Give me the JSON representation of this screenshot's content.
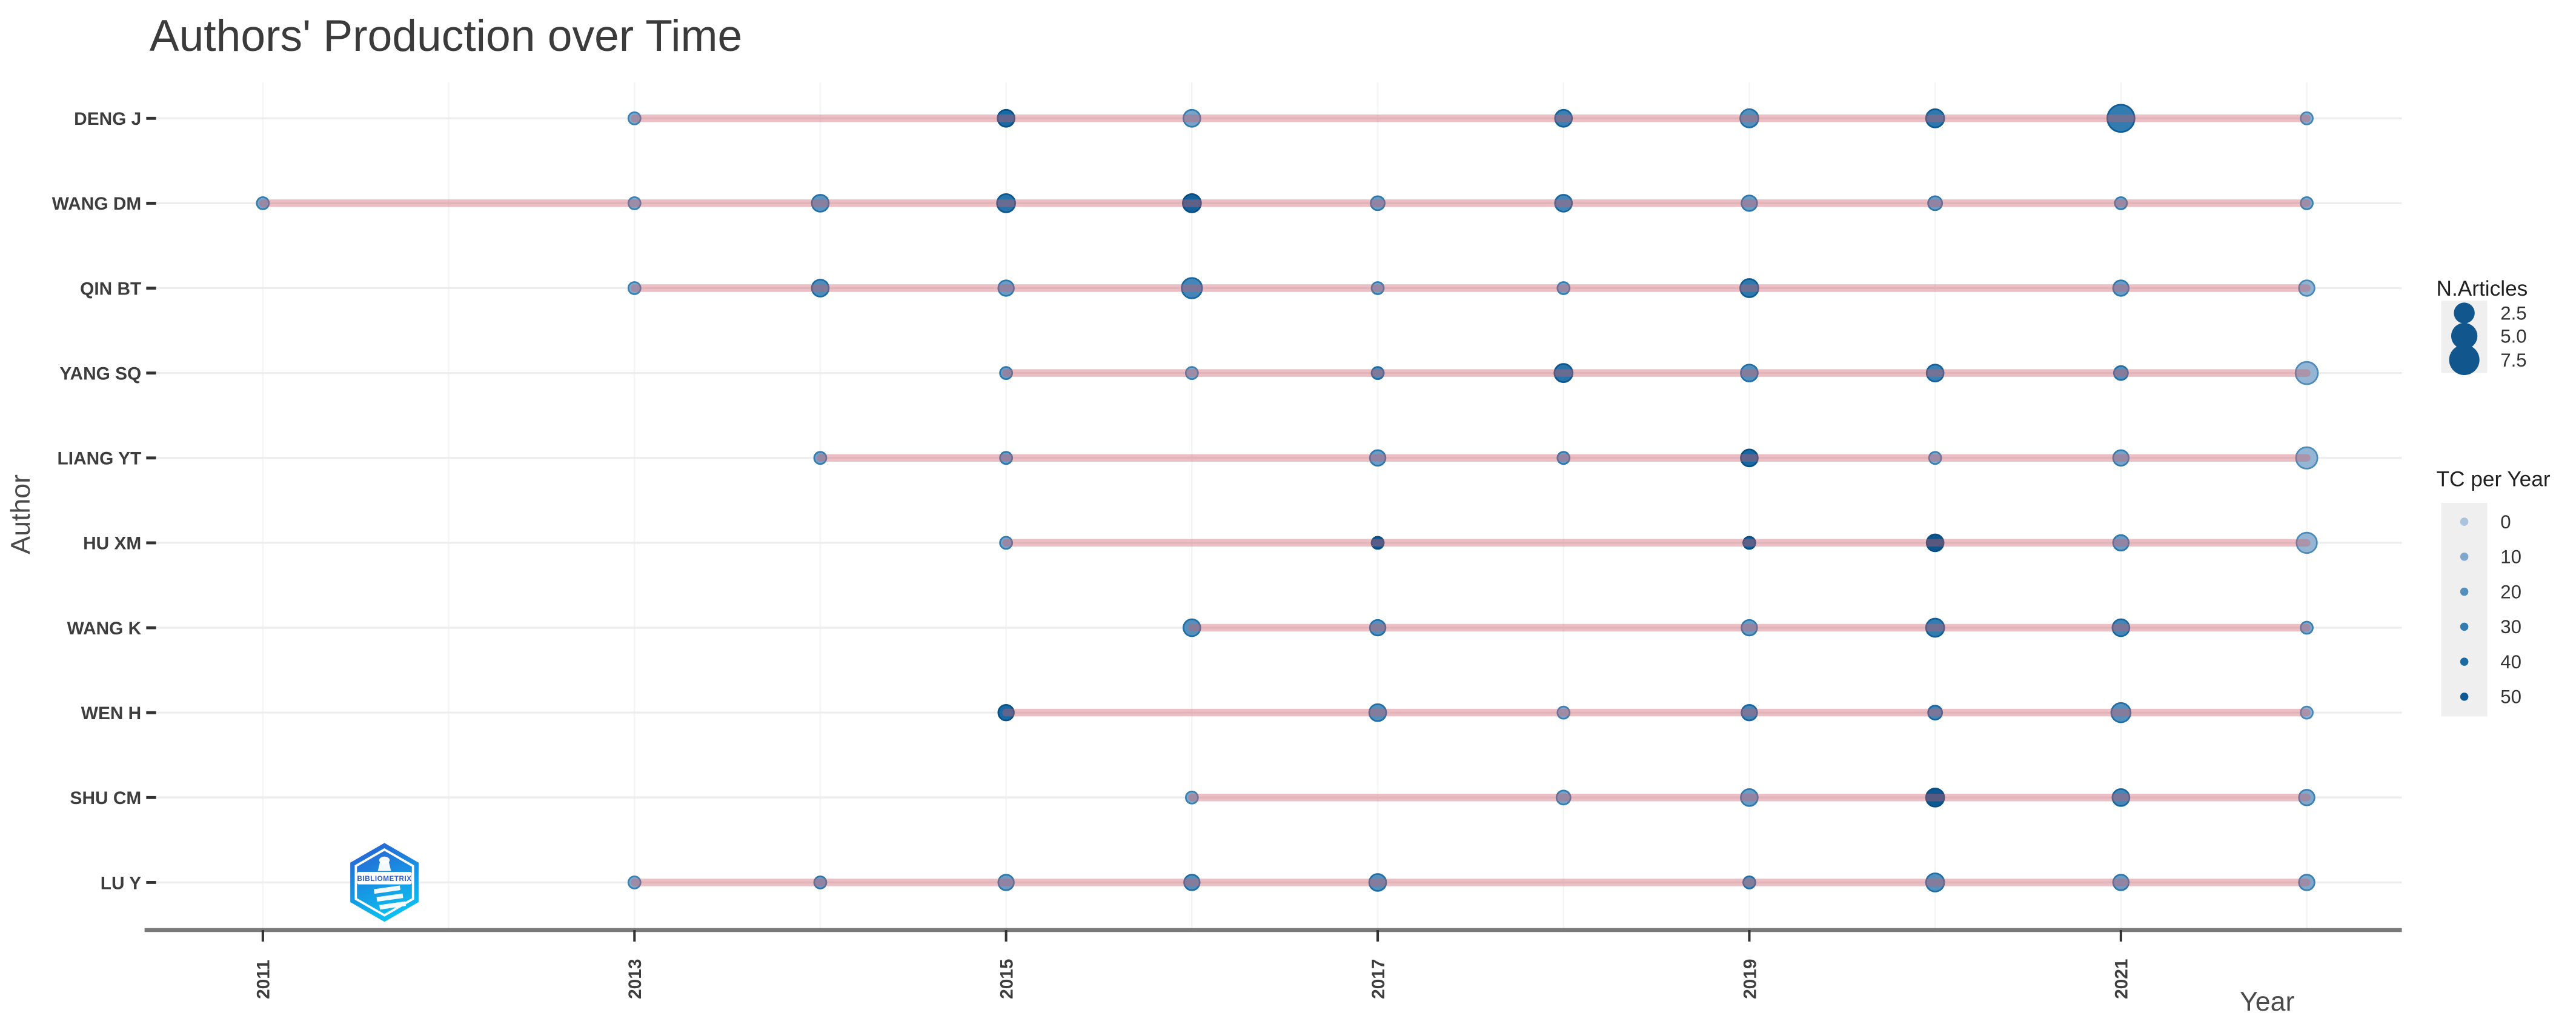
{
  "title": "Authors' Production over Time",
  "colors": {
    "title_text": "#3b3b3b",
    "axis_text": "#3d3d3d",
    "axis_title_text": "#4a4a4a",
    "axis_line": "#7a7a7a",
    "grid_line": "#ededed",
    "minor_grid_line": "#f5f5f5",
    "timespan_line": "rgba(205,95,108,0.40)",
    "legend_key_bg": "#efefef",
    "size_dot": "#11578e",
    "tc_scale_stops": [
      {
        "tc": 0,
        "hex": "#a9c4dc"
      },
      {
        "tc": 10,
        "hex": "#7fa8cc"
      },
      {
        "tc": 20,
        "hex": "#5590bd"
      },
      {
        "tc": 30,
        "hex": "#337cb0"
      },
      {
        "tc": 40,
        "hex": "#1a6aa3"
      },
      {
        "tc": 50,
        "hex": "#0d5a94"
      },
      {
        "tc": 60,
        "hex": "#084e83"
      }
    ],
    "logo_gradient_top": "#2b59d0",
    "logo_gradient_bottom": "#0bbdf0"
  },
  "legend": {
    "size_title": "N.Articles",
    "size_labels": [
      "2.5",
      "5.0",
      "7.5"
    ],
    "size_values": [
      2.5,
      5.0,
      7.5
    ],
    "color_title": "TC per Year",
    "color_labels": [
      "0",
      "10",
      "20",
      "30",
      "40",
      "50"
    ],
    "color_values": [
      0,
      10,
      20,
      30,
      40,
      50
    ]
  },
  "logo": {
    "name": "bibliometrix",
    "text": "BIBLIOMETRIX"
  },
  "chart_data": {
    "type": "scatter",
    "title": "Authors' Production over Time",
    "xlabel": "Year",
    "ylabel": "Author",
    "x_ticks": [
      2011,
      2013,
      2015,
      2017,
      2019,
      2021
    ],
    "x_range": [
      2010.4,
      2022.5
    ],
    "size_legend": "N.Articles",
    "color_legend": "TC per Year",
    "grid": true,
    "legend_position": "right",
    "authors": [
      {
        "name": "DENG J",
        "span": [
          2013,
          2022
        ],
        "points": [
          {
            "year": 2013,
            "articles": 1,
            "tc_per_year": 10
          },
          {
            "year": 2015,
            "articles": 2.5,
            "tc_per_year": 40
          },
          {
            "year": 2016,
            "articles": 2.5,
            "tc_per_year": 12
          },
          {
            "year": 2018,
            "articles": 2.5,
            "tc_per_year": 28
          },
          {
            "year": 2019,
            "articles": 3,
            "tc_per_year": 20
          },
          {
            "year": 2020,
            "articles": 3,
            "tc_per_year": 32
          },
          {
            "year": 2021,
            "articles": 8,
            "tc_per_year": 30
          },
          {
            "year": 2022,
            "articles": 1,
            "tc_per_year": 8
          }
        ]
      },
      {
        "name": "WANG DM",
        "span": [
          2011,
          2022
        ],
        "points": [
          {
            "year": 2011,
            "articles": 1,
            "tc_per_year": 12
          },
          {
            "year": 2013,
            "articles": 1,
            "tc_per_year": 10
          },
          {
            "year": 2014,
            "articles": 2.5,
            "tc_per_year": 18
          },
          {
            "year": 2015,
            "articles": 3,
            "tc_per_year": 35
          },
          {
            "year": 2016,
            "articles": 3,
            "tc_per_year": 45
          },
          {
            "year": 2017,
            "articles": 1.5,
            "tc_per_year": 15
          },
          {
            "year": 2018,
            "articles": 2.5,
            "tc_per_year": 25
          },
          {
            "year": 2019,
            "articles": 2,
            "tc_per_year": 15
          },
          {
            "year": 2020,
            "articles": 1.5,
            "tc_per_year": 15
          },
          {
            "year": 2021,
            "articles": 1,
            "tc_per_year": 12
          },
          {
            "year": 2022,
            "articles": 1,
            "tc_per_year": 10
          }
        ]
      },
      {
        "name": "QIN BT",
        "span": [
          2013,
          2022
        ],
        "points": [
          {
            "year": 2013,
            "articles": 1,
            "tc_per_year": 10
          },
          {
            "year": 2014,
            "articles": 2.5,
            "tc_per_year": 22
          },
          {
            "year": 2015,
            "articles": 2,
            "tc_per_year": 15
          },
          {
            "year": 2016,
            "articles": 4,
            "tc_per_year": 25
          },
          {
            "year": 2017,
            "articles": 1,
            "tc_per_year": 12
          },
          {
            "year": 2018,
            "articles": 1,
            "tc_per_year": 12
          },
          {
            "year": 2019,
            "articles": 3,
            "tc_per_year": 32
          },
          {
            "year": 2021,
            "articles": 2,
            "tc_per_year": 15
          },
          {
            "year": 2022,
            "articles": 2,
            "tc_per_year": 6
          }
        ]
      },
      {
        "name": "YANG SQ",
        "span": [
          2015,
          2022
        ],
        "points": [
          {
            "year": 2015,
            "articles": 1,
            "tc_per_year": 15
          },
          {
            "year": 2016,
            "articles": 1,
            "tc_per_year": 10
          },
          {
            "year": 2017,
            "articles": 1,
            "tc_per_year": 22
          },
          {
            "year": 2018,
            "articles": 3,
            "tc_per_year": 35
          },
          {
            "year": 2019,
            "articles": 2.5,
            "tc_per_year": 20
          },
          {
            "year": 2020,
            "articles": 2.5,
            "tc_per_year": 28
          },
          {
            "year": 2021,
            "articles": 1.5,
            "tc_per_year": 20
          },
          {
            "year": 2022,
            "articles": 5,
            "tc_per_year": 5
          }
        ]
      },
      {
        "name": "LIANG YT",
        "span": [
          2014,
          2022
        ],
        "points": [
          {
            "year": 2014,
            "articles": 1,
            "tc_per_year": 12
          },
          {
            "year": 2015,
            "articles": 1,
            "tc_per_year": 15
          },
          {
            "year": 2017,
            "articles": 2,
            "tc_per_year": 15
          },
          {
            "year": 2018,
            "articles": 1,
            "tc_per_year": 15
          },
          {
            "year": 2019,
            "articles": 2.5,
            "tc_per_year": 42
          },
          {
            "year": 2020,
            "articles": 1,
            "tc_per_year": 10
          },
          {
            "year": 2021,
            "articles": 2,
            "tc_per_year": 12
          },
          {
            "year": 2022,
            "articles": 4.5,
            "tc_per_year": 5
          }
        ]
      },
      {
        "name": "HU XM",
        "span": [
          2015,
          2022
        ],
        "points": [
          {
            "year": 2015,
            "articles": 1,
            "tc_per_year": 12
          },
          {
            "year": 2017,
            "articles": 1,
            "tc_per_year": 50
          },
          {
            "year": 2019,
            "articles": 1,
            "tc_per_year": 45
          },
          {
            "year": 2020,
            "articles": 2.5,
            "tc_per_year": 55
          },
          {
            "year": 2021,
            "articles": 2,
            "tc_per_year": 15
          },
          {
            "year": 2022,
            "articles": 4,
            "tc_per_year": 5
          }
        ]
      },
      {
        "name": "WANG K",
        "span": [
          2016,
          2022
        ],
        "points": [
          {
            "year": 2016,
            "articles": 2.5,
            "tc_per_year": 20
          },
          {
            "year": 2017,
            "articles": 2,
            "tc_per_year": 20
          },
          {
            "year": 2019,
            "articles": 2,
            "tc_per_year": 15
          },
          {
            "year": 2020,
            "articles": 3,
            "tc_per_year": 30
          },
          {
            "year": 2021,
            "articles": 2.5,
            "tc_per_year": 25
          },
          {
            "year": 2022,
            "articles": 1,
            "tc_per_year": 10
          }
        ]
      },
      {
        "name": "WEN H",
        "span": [
          2015,
          2022
        ],
        "points": [
          {
            "year": 2015,
            "articles": 2,
            "tc_per_year": 40
          },
          {
            "year": 2017,
            "articles": 2.5,
            "tc_per_year": 20
          },
          {
            "year": 2018,
            "articles": 1,
            "tc_per_year": 10
          },
          {
            "year": 2019,
            "articles": 2,
            "tc_per_year": 25
          },
          {
            "year": 2020,
            "articles": 1.5,
            "tc_per_year": 25
          },
          {
            "year": 2021,
            "articles": 3.5,
            "tc_per_year": 20
          },
          {
            "year": 2022,
            "articles": 1,
            "tc_per_year": 6
          }
        ]
      },
      {
        "name": "SHU CM",
        "span": [
          2016,
          2022
        ],
        "points": [
          {
            "year": 2016,
            "articles": 1,
            "tc_per_year": 10
          },
          {
            "year": 2018,
            "articles": 1.5,
            "tc_per_year": 12
          },
          {
            "year": 2019,
            "articles": 2.5,
            "tc_per_year": 15
          },
          {
            "year": 2020,
            "articles": 3,
            "tc_per_year": 52
          },
          {
            "year": 2021,
            "articles": 2.5,
            "tc_per_year": 25
          },
          {
            "year": 2022,
            "articles": 2,
            "tc_per_year": 10
          }
        ]
      },
      {
        "name": "LU Y",
        "span": [
          2013,
          2022
        ],
        "points": [
          {
            "year": 2013,
            "articles": 1,
            "tc_per_year": 10
          },
          {
            "year": 2014,
            "articles": 1,
            "tc_per_year": 15
          },
          {
            "year": 2015,
            "articles": 2,
            "tc_per_year": 15
          },
          {
            "year": 2016,
            "articles": 2,
            "tc_per_year": 20
          },
          {
            "year": 2017,
            "articles": 2.5,
            "tc_per_year": 20
          },
          {
            "year": 2019,
            "articles": 1,
            "tc_per_year": 20
          },
          {
            "year": 2020,
            "articles": 3,
            "tc_per_year": 20
          },
          {
            "year": 2021,
            "articles": 2,
            "tc_per_year": 15
          },
          {
            "year": 2022,
            "articles": 2,
            "tc_per_year": 10
          }
        ]
      }
    ]
  }
}
